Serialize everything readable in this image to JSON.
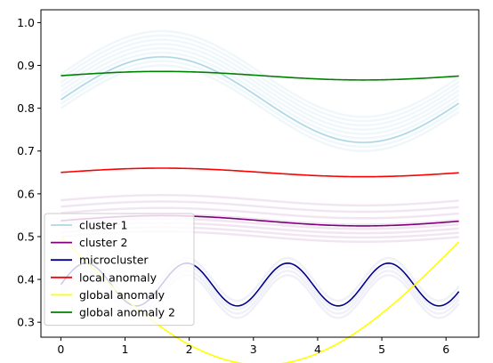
{
  "chart_data": {
    "type": "line",
    "title": "",
    "xlabel": "",
    "ylabel": "",
    "xlim": [
      -0.31,
      6.51
    ],
    "ylim": [
      0.265,
      1.03
    ],
    "grid": false,
    "legend_position": "lower-left",
    "x_ticks": [
      {
        "value": 0,
        "label": "0"
      },
      {
        "value": 1,
        "label": "1"
      },
      {
        "value": 2,
        "label": "2"
      },
      {
        "value": 3,
        "label": "3"
      },
      {
        "value": 4,
        "label": "4"
      },
      {
        "value": 5,
        "label": "5"
      },
      {
        "value": 6,
        "label": "6"
      }
    ],
    "y_ticks": [
      {
        "value": 0.3,
        "label": "0.3"
      },
      {
        "value": 0.4,
        "label": "0.4"
      },
      {
        "value": 0.5,
        "label": "0.5"
      },
      {
        "value": 0.6,
        "label": "0.6"
      },
      {
        "value": 0.7,
        "label": "0.7"
      },
      {
        "value": 0.8,
        "label": "0.8"
      },
      {
        "value": 0.9,
        "label": "0.9"
      },
      {
        "value": 1.0,
        "label": "1.0"
      }
    ],
    "x_range": [
      0,
      6.2
    ],
    "series": [
      {
        "name": "cluster 1",
        "color": "#add8e6",
        "function": "sin",
        "offset": 0.82,
        "amplitude": 0.1,
        "frequency": 1,
        "background_offsets": [
          0.8,
          0.81,
          0.82,
          0.83,
          0.84,
          0.85,
          0.86,
          0.87,
          0.88
        ],
        "background_alpha": 0.2
      },
      {
        "name": "cluster 2",
        "color": "#800080",
        "function": "sin",
        "offset": 0.537,
        "amplitude": 0.012,
        "frequency": 1,
        "background_offsets": [
          0.5,
          0.51,
          0.52,
          0.53,
          0.54,
          0.555,
          0.57,
          0.585
        ],
        "background_alpha": 0.1
      },
      {
        "name": "microcluster",
        "color": "#00008b",
        "function": "sin",
        "offset": 0.388,
        "amplitude": 0.05,
        "frequency": 4,
        "background_offsets": [
          0.36,
          0.37,
          0.38,
          0.4
        ],
        "background_alpha": 0.06
      },
      {
        "name": "local anomaly",
        "color": "#ff0000",
        "function": "sin",
        "offset": 0.65,
        "amplitude": 0.01,
        "frequency": 1
      },
      {
        "name": "global anomaly",
        "color": "#ffff00",
        "function": "sin",
        "offset": 0.5,
        "amplitude": -0.3,
        "frequency": 0.5
      },
      {
        "name": "global anomaly 2",
        "color": "#008000",
        "function": "sin",
        "offset": 0.876,
        "amplitude": 0.01,
        "frequency": 1
      }
    ]
  }
}
